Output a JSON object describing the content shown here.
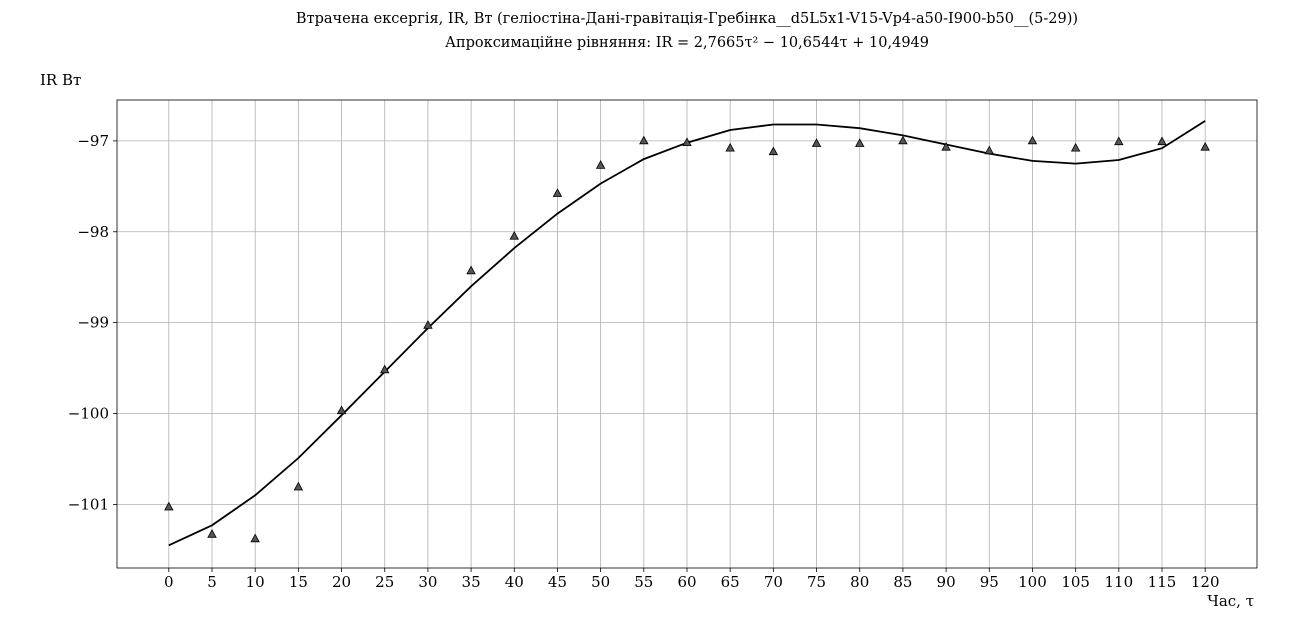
{
  "chart_data": {
    "type": "scatter",
    "title_line1": "Втрачена ексергія, IR, Вт (геліостіна-Дані-гравітація-Гребінка__d5L5x1-V15-Vp4-a50-I900-b50__(5-29))",
    "title_line2": "Апроксимаційне рівняння: IR = 2,7665τ² − 10,6544τ + 10,4949",
    "ylabel": "IR Вт",
    "xlabel": "Час, τ",
    "xlim": [
      -6,
      126
    ],
    "ylim": [
      -101.7,
      -96.55
    ],
    "x_ticks": [
      0,
      5,
      10,
      15,
      20,
      25,
      30,
      35,
      40,
      45,
      50,
      55,
      60,
      65,
      70,
      75,
      80,
      85,
      90,
      95,
      100,
      105,
      110,
      115,
      120
    ],
    "y_ticks": [
      -97,
      -98,
      -99,
      -100,
      -101
    ],
    "y_tick_labels": [
      "−97",
      "−98",
      "−99",
      "−100",
      "−101"
    ],
    "grid": true,
    "series": [
      {
        "kind": "markers",
        "marker": "triangle",
        "color": "#555555",
        "x": [
          0,
          5,
          10,
          15,
          20,
          25,
          30,
          35,
          40,
          45,
          50,
          55,
          60,
          65,
          70,
          75,
          80,
          85,
          90,
          95,
          100,
          105,
          110,
          115,
          120
        ],
        "y": [
          -101.03,
          -101.33,
          -101.38,
          -100.81,
          -99.97,
          -99.52,
          -99.03,
          -98.43,
          -98.05,
          -97.58,
          -97.27,
          -97.0,
          -97.02,
          -97.08,
          -97.12,
          -97.03,
          -97.03,
          -97.0,
          -97.07,
          -97.11,
          -97.0,
          -97.08,
          -97.01,
          -97.01,
          -97.07
        ]
      },
      {
        "kind": "line",
        "color": "#000000",
        "x": [
          0,
          5,
          10,
          15,
          20,
          25,
          30,
          35,
          40,
          45,
          50,
          55,
          60,
          65,
          70,
          75,
          80,
          85,
          90,
          95,
          100,
          105,
          110,
          115,
          120
        ],
        "y": [
          -101.45,
          -101.23,
          -100.9,
          -100.49,
          -100.02,
          -99.54,
          -99.06,
          -98.6,
          -98.18,
          -97.8,
          -97.47,
          -97.2,
          -97.02,
          -96.88,
          -96.82,
          -96.82,
          -96.86,
          -96.94,
          -97.04,
          -97.14,
          -97.22,
          -97.25,
          -97.21,
          -97.08,
          -96.78
        ]
      }
    ]
  }
}
